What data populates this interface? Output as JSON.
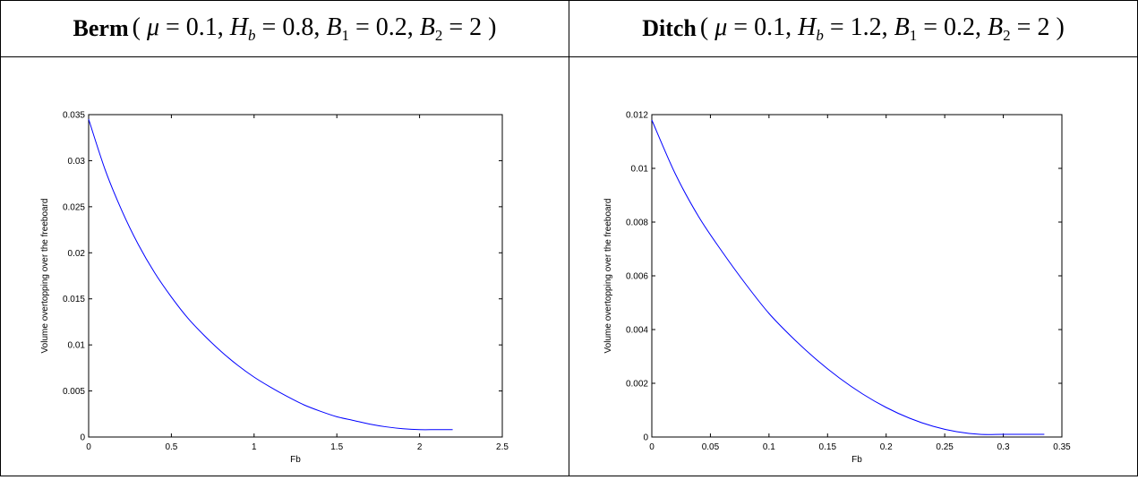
{
  "headers": [
    {
      "word": "Berm",
      "mu": "0.1",
      "Hb": "0.8",
      "B1": "0.2",
      "B2": "2"
    },
    {
      "word": "Ditch",
      "mu": "0.1",
      "Hb": "1.2",
      "B1": "0.2",
      "B2": "2"
    }
  ],
  "chart_data": [
    {
      "type": "line",
      "title": "",
      "xlabel": "Fb",
      "ylabel": "Volume overtopping over the freeboard",
      "xlim": [
        0,
        2.5
      ],
      "ylim": [
        0,
        0.035
      ],
      "xticks": [
        0,
        0.5,
        1,
        1.5,
        2,
        2.5
      ],
      "xtick_labels": [
        "0",
        "0.5",
        "1",
        "1.5",
        "2",
        "2.5"
      ],
      "yticks": [
        0,
        0.005,
        0.01,
        0.015,
        0.02,
        0.025,
        0.03,
        0.035
      ],
      "ytick_labels": [
        "0",
        "0.005",
        "0.01",
        "0.015",
        "0.02",
        "0.025",
        "0.03",
        "0.035"
      ],
      "grid": false,
      "line_color": "#0000ff",
      "series": [
        {
          "x": [
            0,
            0.1,
            0.2,
            0.3,
            0.4,
            0.5,
            0.6,
            0.7,
            0.8,
            0.9,
            1.0,
            1.1,
            1.2,
            1.3,
            1.4,
            1.5,
            1.6,
            1.7,
            1.8,
            1.9,
            2.0,
            2.1,
            2.2
          ],
          "values": [
            0.0345,
            0.029,
            0.0246,
            0.0209,
            0.0178,
            0.0152,
            0.0129,
            0.011,
            0.0093,
            0.0078,
            0.0065,
            0.0054,
            0.0044,
            0.0035,
            0.0028,
            0.0022,
            0.0018,
            0.0014,
            0.0011,
            0.0009,
            0.0008,
            0.0008,
            0.0008
          ]
        }
      ]
    },
    {
      "type": "line",
      "title": "",
      "xlabel": "Fb",
      "ylabel": "Volume overtopping over the freeboard",
      "xlim": [
        0,
        0.35
      ],
      "ylim": [
        0,
        0.012
      ],
      "xticks": [
        0,
        0.05,
        0.1,
        0.15,
        0.2,
        0.25,
        0.3,
        0.35
      ],
      "xtick_labels": [
        "0",
        "0.05",
        "0.1",
        "0.15",
        "0.2",
        "0.25",
        "0.3",
        "0.35"
      ],
      "yticks": [
        0,
        0.002,
        0.004,
        0.006,
        0.008,
        0.01,
        0.012
      ],
      "ytick_labels": [
        "0",
        "0.002",
        "0.004",
        "0.006",
        "0.008",
        "0.01",
        "0.012"
      ],
      "grid": false,
      "line_color": "#0000ff",
      "series": [
        {
          "x": [
            0,
            0.02,
            0.04,
            0.06,
            0.08,
            0.1,
            0.12,
            0.14,
            0.16,
            0.18,
            0.2,
            0.22,
            0.24,
            0.26,
            0.28,
            0.3,
            0.32,
            0.335
          ],
          "values": [
            0.0118,
            0.0098,
            0.0082,
            0.0069,
            0.0057,
            0.0046,
            0.0037,
            0.0029,
            0.0022,
            0.0016,
            0.0011,
            0.0007,
            0.0004,
            0.0002,
            0.0001,
            0.0001,
            0.0001,
            0.0001
          ]
        }
      ]
    }
  ]
}
